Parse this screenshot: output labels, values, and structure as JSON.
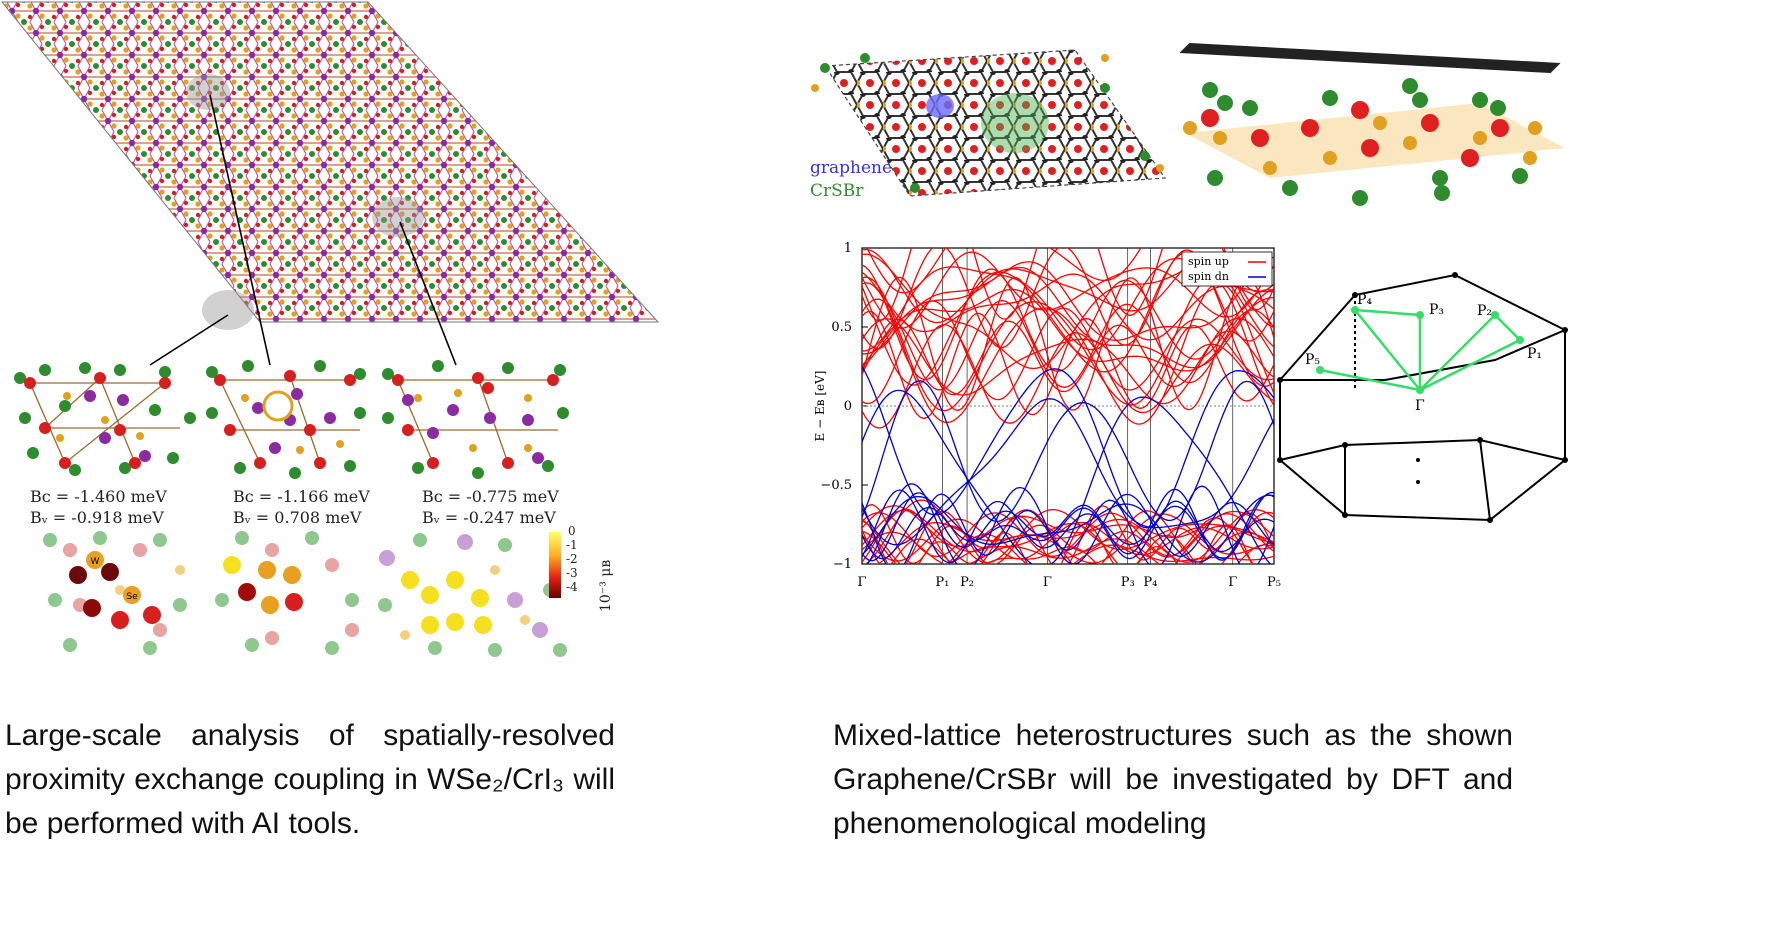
{
  "left_panel": {
    "cells": [
      {
        "bc": "Bᴄ = -1.460 meV",
        "bv": "Bᵥ = -0.918 meV"
      },
      {
        "bc": "Bᴄ = -1.166 meV",
        "bv": "Bᵥ =  0.708 meV"
      },
      {
        "bc": "Bᴄ = -0.775 meV",
        "bv": "Bᵥ = -0.247 meV"
      }
    ],
    "colorbar": {
      "ticks": [
        "0",
        "-1",
        "-2",
        "-3",
        "-4"
      ],
      "unit": "10⁻³ μʙ"
    },
    "atom_labels": [
      "W",
      "Se"
    ],
    "caption": {
      "lines": [
        "Large-scale analysis of spatially-resolved",
        "proximity exchange coupling in WSe₂/CrI₃ will",
        "be performed with AI tools."
      ]
    },
    "colors": {
      "cr": "#d62020",
      "i": "#2e8b2e",
      "w": "#8a2ba0",
      "se": "#e0a020"
    }
  },
  "right_panel": {
    "legend_structure": {
      "graphene": "graphene",
      "crsbr": "CrSBr"
    },
    "chart_data": {
      "type": "line",
      "title": "",
      "xlabel": "",
      "ylabel": "E − Eʙ [eV]",
      "ylim": [
        -1,
        1
      ],
      "yticks": [
        "1",
        "0.5",
        "0",
        "−0.5",
        "−1"
      ],
      "xticks": [
        "Γ",
        "P₁",
        "P₂",
        "Γ",
        "P₃",
        "P₄",
        "Γ",
        "P₅"
      ],
      "legend": {
        "spin_up": "spin up",
        "spin_dn": "spin dn"
      },
      "series": [
        {
          "name": "spin up",
          "color": "#ff0000"
        },
        {
          "name": "spin dn",
          "color": "#0000cc"
        }
      ]
    },
    "bz_labels": {
      "p1": "P₁",
      "p2": "P₂",
      "p3": "P₃",
      "p4": "P₄",
      "p5": "P₅",
      "gamma": "Γ"
    },
    "caption": {
      "lines": [
        "Mixed-lattice heterostructures such as the shown",
        "Graphene/CrSBr will be investigated by DFT and",
        "phenomenological modeling"
      ]
    }
  }
}
